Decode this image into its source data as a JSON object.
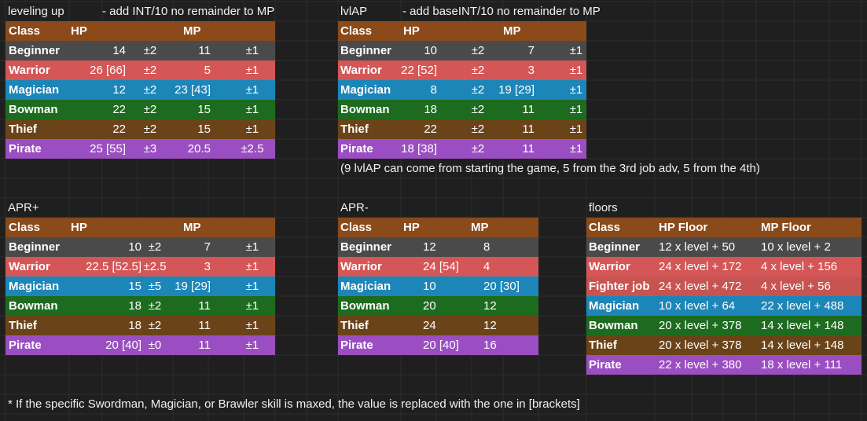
{
  "leveling_up": {
    "title": "leveling up",
    "note": "- add INT/10 no remainder to MP",
    "headers": {
      "class": "Class",
      "hp": "HP",
      "mp": "MP"
    },
    "rows": [
      {
        "cls": "Beginner",
        "hp": "14",
        "hpv": "±2",
        "mp": "11",
        "mpv": "±1"
      },
      {
        "cls": "Warrior",
        "hp": "26 [66]",
        "hpv": "±2",
        "mp": "5",
        "mpv": "±1"
      },
      {
        "cls": "Magician",
        "hp": "12",
        "hpv": "±2",
        "mp": "23 [43]",
        "mpv": "±1"
      },
      {
        "cls": "Bowman",
        "hp": "22",
        "hpv": "±2",
        "mp": "15",
        "mpv": "±1"
      },
      {
        "cls": "Thief",
        "hp": "22",
        "hpv": "±2",
        "mp": "15",
        "mpv": "±1"
      },
      {
        "cls": "Pirate",
        "hp": "25 [55]",
        "hpv": "±3",
        "mp": "20.5",
        "mpv": "±2.5"
      }
    ]
  },
  "lvlap": {
    "title": "lvlAP",
    "note": "- add baseINT/10 no remainder to MP",
    "headers": {
      "class": "Class",
      "hp": "HP",
      "mp": "MP"
    },
    "rows": [
      {
        "cls": "Beginner",
        "hp": "10",
        "hpv": "±2",
        "mp": "7",
        "mpv": "±1"
      },
      {
        "cls": "Warrior",
        "hp": "22 [52]",
        "hpv": "±2",
        "mp": "3",
        "mpv": "±1"
      },
      {
        "cls": "Magician",
        "hp": "8",
        "hpv": "±2",
        "mp": "19 [29]",
        "mpv": "±1"
      },
      {
        "cls": "Bowman",
        "hp": "18",
        "hpv": "±2",
        "mp": "11",
        "mpv": "±1"
      },
      {
        "cls": "Thief",
        "hp": "22",
        "hpv": "±2",
        "mp": "11",
        "mpv": "±1"
      },
      {
        "cls": "Pirate",
        "hp": "18 [38]",
        "hpv": "±2",
        "mp": "11",
        "mpv": "±1"
      }
    ],
    "footnote": "(9 lvlAP can come from starting the game, 5 from the 3rd job adv, 5 from the 4th)"
  },
  "apr_plus": {
    "title": "APR+",
    "headers": {
      "class": "Class",
      "hp": "HP",
      "mp": "MP"
    },
    "rows": [
      {
        "cls": "Beginner",
        "hp": "10",
        "hpv": "±2",
        "mp": "7",
        "mpv": "±1"
      },
      {
        "cls": "Warrior",
        "hp": "22.5 [52.5]",
        "hpv": "±2.5",
        "mp": "3",
        "mpv": "±1"
      },
      {
        "cls": "Magician",
        "hp": "15",
        "hpv": "±5",
        "mp": "19 [29]",
        "mpv": "±1"
      },
      {
        "cls": "Bowman",
        "hp": "18",
        "hpv": "±2",
        "mp": "11",
        "mpv": "±1"
      },
      {
        "cls": "Thief",
        "hp": "18",
        "hpv": "±2",
        "mp": "11",
        "mpv": "±1"
      },
      {
        "cls": "Pirate",
        "hp": "20 [40]",
        "hpv": "±0",
        "mp": "11",
        "mpv": "±1"
      }
    ]
  },
  "apr_minus": {
    "title": "APR-",
    "headers": {
      "class": "Class",
      "hp": "HP",
      "mp": "MP"
    },
    "rows": [
      {
        "cls": "Beginner",
        "hp": "12",
        "mp": "8"
      },
      {
        "cls": "Warrior",
        "hp": "24 [54]",
        "mp": "4"
      },
      {
        "cls": "Magician",
        "hp": "10",
        "mp": "20 [30]"
      },
      {
        "cls": "Bowman",
        "hp": "20",
        "mp": "12"
      },
      {
        "cls": "Thief",
        "hp": "24",
        "mp": "12"
      },
      {
        "cls": "Pirate",
        "hp": "20 [40]",
        "mp": "16"
      }
    ]
  },
  "floors": {
    "title": "floors",
    "headers": {
      "class": "Class",
      "hp": "HP Floor",
      "mp": "MP Floor"
    },
    "rows": [
      {
        "cls": "Beginner",
        "hp": "12 x level + 50",
        "mp": "10 x level + 2"
      },
      {
        "cls": "Warrior",
        "hp": "24 x level + 172",
        "mp": "4 x level + 156"
      },
      {
        "cls": "Fighter job",
        "hp": "24 x level + 472",
        "mp": "4 x level + 56"
      },
      {
        "cls": "Magician",
        "hp": "10 x level + 64",
        "mp": "22 x level + 488"
      },
      {
        "cls": "Bowman",
        "hp": "20 x level + 378",
        "mp": "14 x level + 148"
      },
      {
        "cls": "Thief",
        "hp": "20 x level + 378",
        "mp": "14 x level + 148"
      },
      {
        "cls": "Pirate",
        "hp": "22 x level + 380",
        "mp": "18 x level + 111"
      }
    ]
  },
  "footer_note": "* If the specific Swordman, Magician, or Brawler skill is maxed, the value is replaced with the one in [brackets]",
  "colors": {
    "background": "#1f1f1f",
    "header": "#8a4a1a",
    "beginner": "#4a4a4a",
    "warrior": "#d45656",
    "fighter": "#c75451",
    "magician": "#1d86b8",
    "bowman": "#1d6b1f",
    "thief": "#6b4319",
    "pirate": "#9a4ec1"
  }
}
